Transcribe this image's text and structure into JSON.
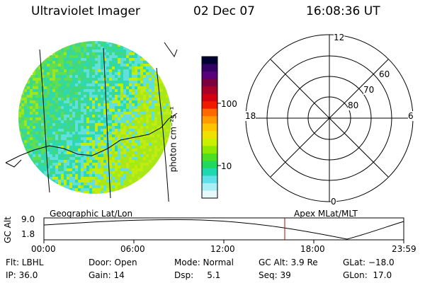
{
  "header": {
    "instrument": "Ultraviolet Imager",
    "date": "02 Dec 07",
    "time": "16:08:36 UT"
  },
  "colorbar": {
    "unit_label": "photon cm⁻²s⁻¹",
    "ticks": [
      "100",
      "10"
    ],
    "colors": [
      "#000033",
      "#330066",
      "#5a007a",
      "#7a0040",
      "#a80028",
      "#d00010",
      "#f01a00",
      "#ff6a00",
      "#ff9a00",
      "#ffc400",
      "#f0e000",
      "#c8f000",
      "#8ee800",
      "#4ede20",
      "#20d860",
      "#20d8b0",
      "#60e0e8",
      "#a8eef4",
      "#e6f8fa"
    ]
  },
  "polar_plot": {
    "mlt_labels": {
      "top": "12",
      "bottom": "0",
      "left": "18",
      "right": "6"
    },
    "lat_labels": [
      "60",
      "70",
      "80"
    ]
  },
  "timeline": {
    "axis_label": "GC Alt",
    "y_ticks": [
      "9.0",
      "1.8"
    ],
    "left_title": "Geographic Lat/Lon",
    "right_title": "Apex MLat/MLT",
    "x_ticks": [
      "00:00",
      "06:00",
      "12:00",
      "18:00",
      "23:59"
    ],
    "marker_color": "#c00000"
  },
  "footer": {
    "flt": "Flt: LBHL",
    "door": "Door: Open",
    "mode": "Mode: Normal",
    "gc_alt": "GC Alt: 3.9 Re",
    "glat": "GLat: −18.0",
    "ip": "IP: 36.0",
    "gain": "Gain: 14",
    "dsp": "Dsp:     5.1",
    "seq": "Seq: 39",
    "glon": "GLon:  17.0"
  }
}
